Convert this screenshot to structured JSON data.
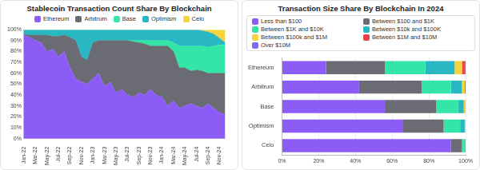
{
  "chart_data": [
    {
      "type": "area",
      "title": "Stablecoin Transaction Count Share By Blockchain",
      "categories": [
        "Jan-22",
        null,
        "Mar-22",
        null,
        "May-22",
        null,
        "Jul-22",
        null,
        "Sep-22",
        null,
        "Nov-22",
        null,
        "Jan-23",
        null,
        "Mar-23",
        null,
        "May-23",
        null,
        "Jul-23",
        null,
        "Sep-23",
        null,
        "Nov-23",
        null,
        "Jan-24",
        null,
        "Mar-24",
        null,
        "May-24",
        null,
        "Jul-24",
        null,
        "Sep-24",
        null,
        "Nov-24",
        null
      ],
      "series": [
        {
          "name": "Ethereum",
          "color": "#8b5cf6",
          "values": [
            95,
            93,
            90,
            88,
            80,
            82,
            75,
            80,
            65,
            55,
            52,
            50,
            55,
            60,
            48,
            52,
            42,
            45,
            40,
            38,
            42,
            40,
            45,
            40,
            38,
            30,
            35,
            28,
            30,
            32,
            30,
            28,
            32,
            28,
            24,
            22
          ]
        },
        {
          "name": "Arbitrum",
          "color": "#6b6b74",
          "values": [
            1,
            2,
            5,
            7,
            15,
            12,
            19,
            15,
            28,
            35,
            23,
            22,
            33,
            30,
            42,
            38,
            48,
            45,
            50,
            51,
            46,
            47,
            40,
            45,
            47,
            55,
            45,
            37,
            35,
            30,
            33,
            34,
            28,
            32,
            36,
            38
          ]
        },
        {
          "name": "Base",
          "color": "#33e6a8",
          "values": [
            0,
            0,
            0,
            0,
            0,
            0,
            0,
            0,
            0,
            0,
            0,
            0,
            0,
            0,
            0,
            0,
            0,
            0,
            0,
            1,
            2,
            3,
            5,
            5,
            5,
            5,
            8,
            20,
            20,
            23,
            22,
            23,
            24,
            25,
            26,
            26
          ]
        },
        {
          "name": "Optimism",
          "color": "#2ab7c4",
          "values": [
            4,
            5,
            5,
            5,
            5,
            6,
            6,
            5,
            7,
            10,
            25,
            28,
            12,
            10,
            10,
            10,
            10,
            10,
            10,
            10,
            10,
            10,
            10,
            10,
            10,
            10,
            12,
            15,
            15,
            15,
            15,
            14,
            14,
            11,
            6,
            2
          ]
        },
        {
          "name": "Celo",
          "color": "#f5d33f",
          "values": [
            0,
            0,
            0,
            0,
            0,
            0,
            0,
            0,
            0,
            0,
            0,
            0,
            0,
            0,
            0,
            0,
            0,
            0,
            0,
            0,
            0,
            0,
            0,
            0,
            0,
            0,
            0,
            0,
            0,
            0,
            0,
            1,
            2,
            4,
            8,
            12
          ]
        }
      ],
      "stacked": true,
      "legend": "top",
      "grid": false,
      "ylim": [
        0,
        100
      ],
      "yticks": [
        {
          "value": 0,
          "label": "0%"
        },
        {
          "value": 10,
          "label": "10%"
        },
        {
          "value": 20,
          "label": "20%"
        },
        {
          "value": 30,
          "label": "30%"
        },
        {
          "value": 40,
          "label": "40%"
        },
        {
          "value": 50,
          "label": "50%"
        },
        {
          "value": 60,
          "label": "60%"
        },
        {
          "value": 70,
          "label": "70%"
        },
        {
          "value": 80,
          "label": "80%"
        },
        {
          "value": 90,
          "label": "90%"
        },
        {
          "value": 100,
          "label": "100%"
        }
      ]
    },
    {
      "type": "bar",
      "title": "Transaction Size Share By Blockchain In 2024",
      "orientation": "horizontal",
      "categories": [
        "Ethereum",
        "Arbitrum",
        "Base",
        "Optimism",
        "Celo"
      ],
      "series": [
        {
          "name": "Less than $100",
          "color": "#8b5cf6",
          "values": [
            24,
            42,
            56,
            66,
            92
          ]
        },
        {
          "name": "Between $100 and $1K",
          "color": "#6b6b74",
          "values": [
            32,
            34,
            28,
            22,
            6
          ]
        },
        {
          "name": "Between $1K and $10K",
          "color": "#33e6a8",
          "values": [
            22,
            16,
            12,
            9,
            1.5
          ]
        },
        {
          "name": "Between $10k and $100K",
          "color": "#2ab7c4",
          "values": [
            16,
            6,
            3,
            2.5,
            0.4
          ]
        },
        {
          "name": "Between $100k and $1M",
          "color": "#f5d33f",
          "values": [
            4,
            1.5,
            0.8,
            0.4,
            0.1
          ]
        },
        {
          "name": "Between $1M and $10M",
          "color": "#e8424c",
          "values": [
            1.5,
            0.4,
            0.2,
            0.1,
            0
          ]
        },
        {
          "name": "Over $10M",
          "color": "#7d6bf0",
          "values": [
            0.5,
            0.1,
            0,
            0,
            0
          ]
        }
      ],
      "stacked": true,
      "legend": "top",
      "grid": true,
      "xlim": [
        0,
        100
      ],
      "xticks": [
        {
          "value": 0,
          "label": "0%"
        },
        {
          "value": 20,
          "label": "20%"
        },
        {
          "value": 40,
          "label": "40%"
        },
        {
          "value": 60,
          "label": "60%"
        },
        {
          "value": 80,
          "label": "80%"
        },
        {
          "value": 100,
          "label": "100%"
        }
      ]
    }
  ]
}
